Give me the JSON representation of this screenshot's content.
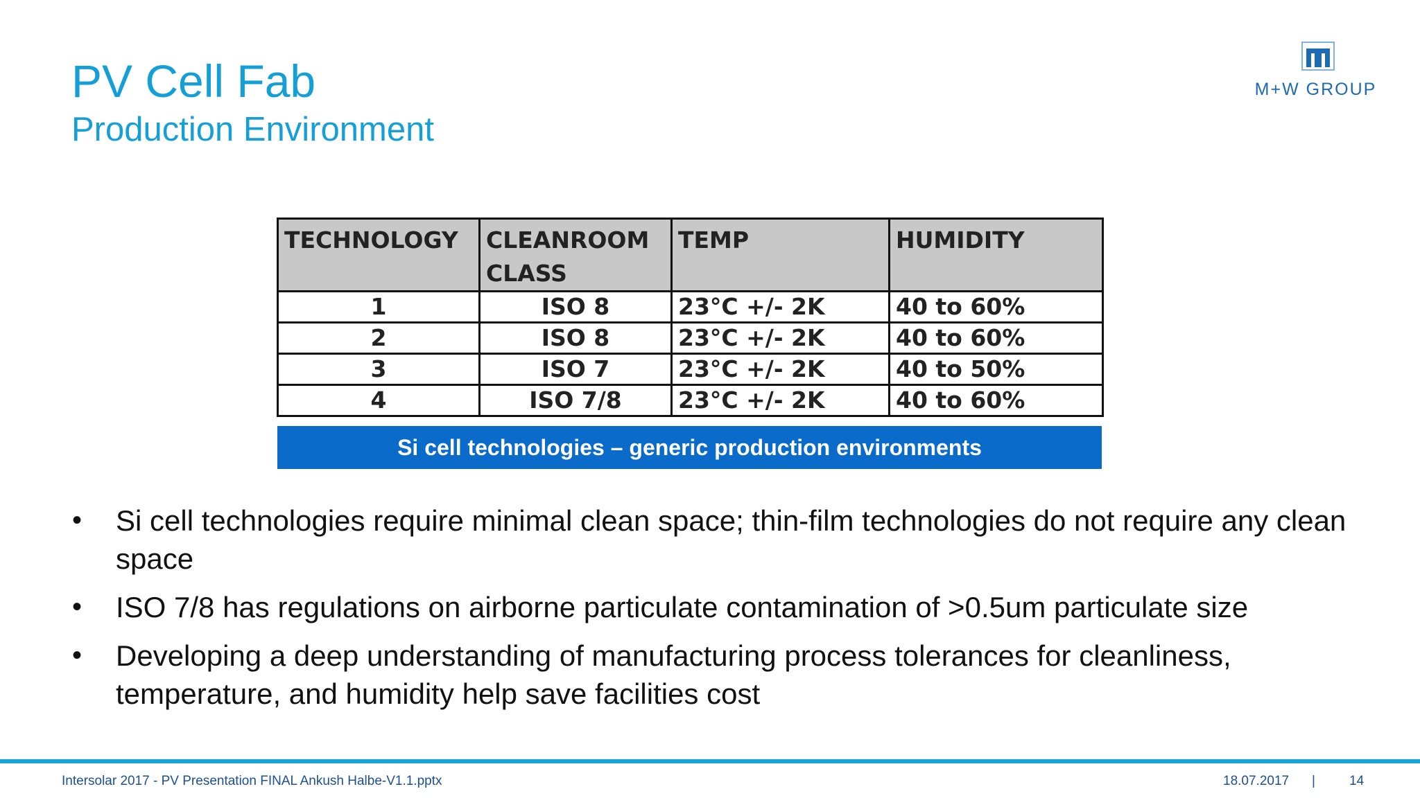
{
  "slide": {
    "title": "PV Cell Fab",
    "subtitle": "Production Environment",
    "accent_color": "#14a0d6"
  },
  "logo": {
    "text": "M+W GROUP",
    "icon": "mw-logo-mark",
    "color": "#1d6bb3"
  },
  "table": {
    "headers": [
      "TECHNOLOGY",
      "CLEANROOM CLASS",
      "TEMP",
      "HUMIDITY"
    ],
    "rows": [
      [
        "1",
        "ISO 8",
        "23°C +/- 2K",
        "40 to 60%"
      ],
      [
        "2",
        "ISO 8",
        "23°C +/- 2K",
        "40 to 60%"
      ],
      [
        "3",
        "ISO 7",
        "23°C +/- 2K",
        "40 to 50%"
      ],
      [
        "4",
        "ISO 7/8",
        "23°C +/- 2K",
        "40 to 60%"
      ]
    ],
    "header_bg": "#c8c8c8",
    "caption": "Si cell technologies – generic production environments",
    "caption_bg": "#0a6bcb"
  },
  "bullets": [
    "Si cell technologies require minimal clean space; thin-film technologies do not require any clean space",
    "ISO 7/8 has regulations on airborne particulate contamination of >0.5um particulate size",
    "Developing a deep understanding of manufacturing process tolerances for cleanliness, temperature, and humidity help save facilities cost"
  ],
  "bullet_symbol": "•",
  "footer": {
    "file": "Intersolar 2017 - PV Presentation FINAL Ankush Halbe-V1.1.pptx",
    "date": "18.07.2017",
    "separator": "|",
    "page": "14",
    "line_color": "#18a3d8"
  }
}
